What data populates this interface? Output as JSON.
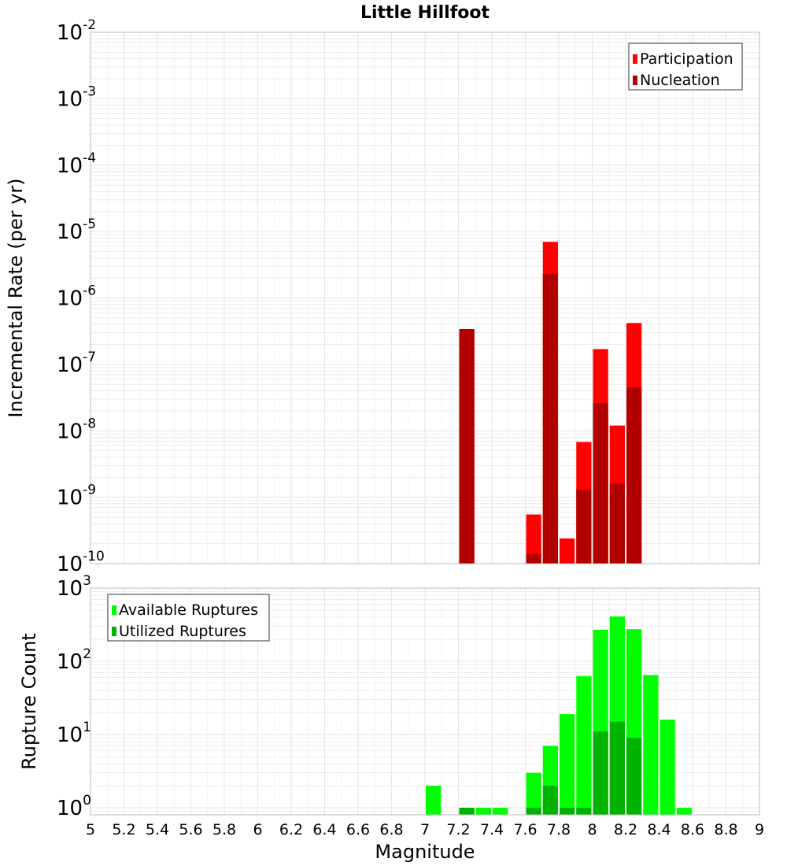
{
  "title": "Little Hillfoot",
  "xlabel": "Magnitude",
  "colors": {
    "participation": "#ff0000",
    "nucleation": "#b20000",
    "available": "#00ff00",
    "utilized": "#00b300",
    "grid": "#e6e6e6",
    "frame": "#bbbbbb"
  },
  "chart_data": [
    {
      "type": "bar",
      "panel": "top",
      "ylabel": "Incremental Rate (per yr)",
      "y_scale": "log",
      "ylim": [
        1e-10,
        0.01
      ],
      "xlim": [
        5,
        9
      ],
      "bin_width": 0.1,
      "x_ticks": [
        "5",
        "5.2",
        "5.4",
        "5.6",
        "5.8",
        "6",
        "6.2",
        "6.4",
        "6.6",
        "6.8",
        "7",
        "7.2",
        "7.4",
        "7.6",
        "7.8",
        "8",
        "8.2",
        "8.4",
        "8.6",
        "8.8",
        "9"
      ],
      "y_ticks": [
        {
          "base": "10",
          "exp": "-10"
        },
        {
          "base": "10",
          "exp": "-9"
        },
        {
          "base": "10",
          "exp": "-8"
        },
        {
          "base": "10",
          "exp": "-7"
        },
        {
          "base": "10",
          "exp": "-6"
        },
        {
          "base": "10",
          "exp": "-5"
        },
        {
          "base": "10",
          "exp": "-4"
        },
        {
          "base": "10",
          "exp": "-3"
        },
        {
          "base": "10",
          "exp": "-2"
        }
      ],
      "legend_position": "top-right",
      "series": [
        {
          "name": "Participation",
          "x": [
            7.25,
            7.65,
            7.75,
            7.85,
            7.95,
            8.05,
            8.15,
            8.25
          ],
          "values": [
            3.4e-07,
            5.5e-10,
            7e-06,
            2.4e-10,
            6.8e-09,
            1.7e-07,
            1.2e-08,
            4.2e-07
          ]
        },
        {
          "name": "Nucleation",
          "x": [
            7.25,
            7.65,
            7.75,
            7.95,
            8.05,
            8.15,
            8.25
          ],
          "values": [
            3.4e-07,
            1.4e-10,
            2.3e-06,
            1.3e-09,
            2.6e-08,
            1.6e-09,
            4.5e-08
          ]
        }
      ]
    },
    {
      "type": "bar",
      "panel": "bottom",
      "ylabel": "Rupture Count",
      "y_scale": "log",
      "ylim": [
        0.8,
        1000
      ],
      "xlim": [
        5,
        9
      ],
      "bin_width": 0.1,
      "y_ticks": [
        {
          "base": "10",
          "exp": "0"
        },
        {
          "base": "10",
          "exp": "1"
        },
        {
          "base": "10",
          "exp": "2"
        },
        {
          "base": "10",
          "exp": "3"
        }
      ],
      "legend_position": "top-left",
      "series": [
        {
          "name": "Available Ruptures",
          "x": [
            7.05,
            7.25,
            7.35,
            7.45,
            7.65,
            7.75,
            7.85,
            7.95,
            8.05,
            8.15,
            8.25,
            8.35,
            8.45,
            8.55
          ],
          "values": [
            2,
            1,
            1,
            1,
            3,
            7,
            19,
            63,
            270,
            410,
            275,
            65,
            16,
            1
          ]
        },
        {
          "name": "Utilized Ruptures",
          "x": [
            7.25,
            7.65,
            7.75,
            7.85,
            7.95,
            8.05,
            8.15,
            8.25
          ],
          "values": [
            1,
            1,
            2,
            1,
            1,
            11,
            15,
            9
          ]
        }
      ]
    }
  ]
}
